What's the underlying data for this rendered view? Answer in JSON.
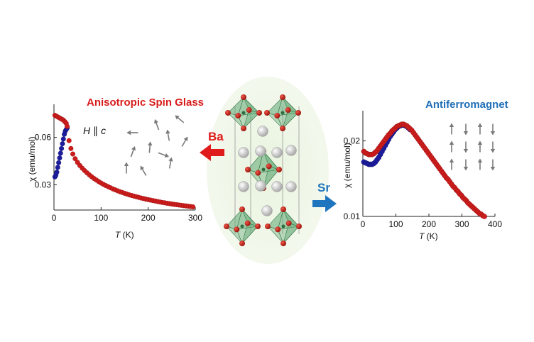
{
  "chart_data": [
    {
      "type": "scatter",
      "title": "Anisotropic Spin Glass",
      "annotation_var": "H",
      "annotation_rel": "∥",
      "annotation_axis": "c",
      "xlabel_var": "T",
      "xlabel_unit": " (K)",
      "ylabel_var": "χ",
      "ylabel_unit": " (emu/mol)",
      "xlim": [
        0,
        300
      ],
      "ylim": [
        0.014,
        0.081
      ],
      "xticks": [
        "0",
        "100",
        "200",
        "300"
      ],
      "yticks": [
        "0.03",
        "0.06"
      ],
      "series": [
        {
          "color": "#1c1c9e",
          "points": [
            [
              2,
              0.035
            ],
            [
              4,
              0.036
            ],
            [
              6,
              0.038
            ],
            [
              8,
              0.041
            ],
            [
              10,
              0.044
            ],
            [
              12,
              0.047
            ],
            [
              14,
              0.05
            ],
            [
              16,
              0.053
            ],
            [
              18,
              0.056
            ],
            [
              20,
              0.059
            ],
            [
              22,
              0.062
            ],
            [
              24,
              0.064
            ],
            [
              26,
              0.065
            ],
            [
              28,
              0.066
            ]
          ]
        },
        {
          "color": "#cc1c1c",
          "points": [
            [
              2,
              0.074
            ],
            [
              5,
              0.0735
            ],
            [
              8,
              0.073
            ],
            [
              11,
              0.0725
            ],
            [
              14,
              0.072
            ],
            [
              17,
              0.0715
            ],
            [
              20,
              0.071
            ],
            [
              23,
              0.07
            ],
            [
              26,
              0.069
            ],
            [
              28,
              0.067
            ],
            [
              32,
              0.058
            ],
            [
              36,
              0.053
            ],
            [
              40,
              0.0495
            ],
            [
              45,
              0.0465
            ],
            [
              50,
              0.0442
            ],
            [
              55,
              0.0422
            ],
            [
              60,
              0.0405
            ],
            [
              65,
              0.039
            ],
            [
              70,
              0.0376
            ],
            [
              75,
              0.0363
            ],
            [
              80,
              0.0351
            ],
            [
              85,
              0.034
            ],
            [
              90,
              0.033
            ],
            [
              95,
              0.032
            ],
            [
              100,
              0.0311
            ],
            [
              105,
              0.0303
            ],
            [
              110,
              0.0295
            ],
            [
              115,
              0.0288
            ],
            [
              120,
              0.0281
            ],
            [
              125,
              0.0274
            ],
            [
              130,
              0.0268
            ],
            [
              135,
              0.0262
            ],
            [
              140,
              0.0256
            ],
            [
              145,
              0.0251
            ],
            [
              150,
              0.0246
            ],
            [
              155,
              0.0241
            ],
            [
              160,
              0.0236
            ],
            [
              165,
              0.0232
            ],
            [
              170,
              0.0228
            ],
            [
              175,
              0.0224
            ],
            [
              180,
              0.022
            ],
            [
              185,
              0.0216
            ],
            [
              190,
              0.0213
            ],
            [
              195,
              0.0209
            ],
            [
              200,
              0.0206
            ],
            [
              205,
              0.0203
            ],
            [
              210,
              0.02
            ],
            [
              215,
              0.0197
            ],
            [
              220,
              0.0194
            ],
            [
              225,
              0.0191
            ],
            [
              230,
              0.0188
            ],
            [
              235,
              0.0186
            ],
            [
              240,
              0.0183
            ],
            [
              245,
              0.0181
            ],
            [
              250,
              0.0178
            ],
            [
              255,
              0.0176
            ],
            [
              260,
              0.0174
            ],
            [
              265,
              0.0172
            ],
            [
              270,
              0.017
            ],
            [
              275,
              0.0168
            ],
            [
              280,
              0.0166
            ],
            [
              285,
              0.0164
            ],
            [
              290,
              0.0162
            ],
            [
              295,
              0.016
            ]
          ]
        }
      ]
    },
    {
      "type": "scatter",
      "title": "Antiferromagnet",
      "xlabel_var": "T",
      "xlabel_unit": " (K)",
      "ylabel_var": "χ",
      "ylabel_unit": " (emu/mol)",
      "xlim": [
        0,
        400
      ],
      "ylim": [
        0.01,
        0.024
      ],
      "xticks": [
        "0",
        "100",
        "200",
        "300",
        "400"
      ],
      "yticks": [
        "0.01",
        "0.02"
      ],
      "series": [
        {
          "color": "#1c1c9e",
          "points": [
            [
              3,
              0.0172
            ],
            [
              8,
              0.0171
            ],
            [
              13,
              0.017
            ],
            [
              18,
              0.0169
            ],
            [
              23,
              0.0169
            ],
            [
              28,
              0.0169
            ],
            [
              33,
              0.017
            ],
            [
              38,
              0.0172
            ],
            [
              43,
              0.0175
            ],
            [
              48,
              0.0178
            ],
            [
              53,
              0.0182
            ],
            [
              58,
              0.0186
            ],
            [
              63,
              0.019
            ],
            [
              68,
              0.0194
            ],
            [
              73,
              0.0198
            ],
            [
              78,
              0.0202
            ],
            [
              83,
              0.0206
            ],
            [
              88,
              0.0209
            ],
            [
              93,
              0.0212
            ],
            [
              98,
              0.0215
            ],
            [
              103,
              0.0217
            ],
            [
              108,
              0.0219
            ],
            [
              113,
              0.022
            ],
            [
              118,
              0.0221
            ],
            [
              123,
              0.0221
            ],
            [
              128,
              0.022
            ],
            [
              133,
              0.0219
            ],
            [
              138,
              0.0217
            ],
            [
              143,
              0.0215
            ]
          ]
        },
        {
          "color": "#cc1c1c",
          "points": [
            [
              3,
              0.0186
            ],
            [
              8,
              0.0184
            ],
            [
              13,
              0.0183
            ],
            [
              18,
              0.0182
            ],
            [
              23,
              0.0182
            ],
            [
              28,
              0.0182
            ],
            [
              33,
              0.0183
            ],
            [
              38,
              0.0185
            ],
            [
              43,
              0.0187
            ],
            [
              48,
              0.019
            ],
            [
              53,
              0.0193
            ],
            [
              58,
              0.0196
            ],
            [
              63,
              0.0199
            ],
            [
              68,
              0.0202
            ],
            [
              73,
              0.0205
            ],
            [
              78,
              0.0208
            ],
            [
              83,
              0.021
            ],
            [
              88,
              0.0213
            ],
            [
              93,
              0.0215
            ],
            [
              98,
              0.0217
            ],
            [
              103,
              0.0219
            ],
            [
              108,
              0.022
            ],
            [
              113,
              0.0221
            ],
            [
              118,
              0.0222
            ],
            [
              123,
              0.0222
            ],
            [
              128,
              0.0221
            ],
            [
              133,
              0.022
            ],
            [
              138,
              0.0218
            ],
            [
              143,
              0.0216
            ],
            [
              148,
              0.0214
            ],
            [
              153,
              0.0211
            ],
            [
              158,
              0.0208
            ],
            [
              163,
              0.0205
            ],
            [
              168,
              0.0202
            ],
            [
              173,
              0.0199
            ],
            [
              178,
              0.0196
            ],
            [
              183,
              0.0193
            ],
            [
              188,
              0.019
            ],
            [
              193,
              0.0187
            ],
            [
              198,
              0.0184
            ],
            [
              203,
              0.0181
            ],
            [
              208,
              0.0178
            ],
            [
              213,
              0.0175
            ],
            [
              218,
              0.0172
            ],
            [
              223,
              0.0169
            ],
            [
              228,
              0.0166
            ],
            [
              233,
              0.0163
            ],
            [
              238,
              0.016
            ],
            [
              243,
              0.0157
            ],
            [
              248,
              0.0154
            ],
            [
              253,
              0.0151
            ],
            [
              258,
              0.0149
            ],
            [
              263,
              0.0146
            ],
            [
              268,
              0.0143
            ],
            [
              273,
              0.014
            ],
            [
              278,
              0.0138
            ],
            [
              283,
              0.0135
            ],
            [
              288,
              0.0133
            ],
            [
              293,
              0.013
            ],
            [
              298,
              0.0128
            ],
            [
              303,
              0.0125
            ],
            [
              308,
              0.0123
            ],
            [
              313,
              0.0121
            ],
            [
              318,
              0.0118
            ],
            [
              323,
              0.0116
            ],
            [
              328,
              0.0114
            ],
            [
              333,
              0.0112
            ],
            [
              338,
              0.011
            ],
            [
              343,
              0.0108
            ],
            [
              348,
              0.0106
            ],
            [
              353,
              0.0104
            ],
            [
              358,
              0.0103
            ],
            [
              363,
              0.0101
            ],
            [
              368,
              0.01
            ]
          ]
        }
      ]
    }
  ],
  "center": {
    "left_label": "Ba",
    "left_color": "#e01b1b",
    "right_label": "Sr",
    "right_color": "#1f75bd"
  },
  "colors": {
    "glass_title": "#d81c1c",
    "afm_title": "#1f6fb8"
  },
  "spin_arrow_color": "#7a7a7a",
  "octahedron_color": "#5ea873",
  "atom_color": "#c81f12",
  "sphere_color": "#d9d9d9"
}
